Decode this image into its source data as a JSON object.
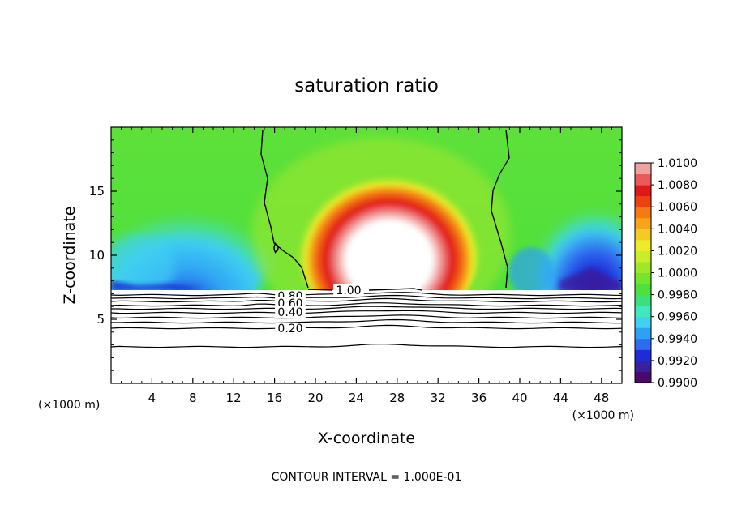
{
  "chart_data": {
    "type": "heatmap",
    "title": "saturation ratio",
    "xlabel": "X-coordinate",
    "ylabel": "Z-coordinate",
    "x_unit": "(×1000 m)",
    "y_unit": "(×1000 m)",
    "xlim": [
      0,
      50
    ],
    "ylim": [
      0,
      20
    ],
    "x_ticks": [
      4,
      8,
      12,
      16,
      20,
      24,
      28,
      32,
      36,
      40,
      44,
      48
    ],
    "y_ticks": [
      5,
      10,
      15
    ],
    "footer": "CONTOUR INTERVAL = 1.000E-01",
    "colorbar": {
      "min": 0.99,
      "max": 1.01,
      "labels": [
        "1.0100",
        "1.0080",
        "1.0060",
        "1.0040",
        "1.0020",
        "1.0000",
        "0.9980",
        "0.9960",
        "0.9940",
        "0.9920",
        "0.9900"
      ],
      "colors": [
        "#4b0a6b",
        "#3a1f9e",
        "#1f2bd6",
        "#2f6bf0",
        "#2fa0f5",
        "#3fd0f2",
        "#3fe8c0",
        "#3be07a",
        "#4ee03c",
        "#72e52c",
        "#9ee82a",
        "#c8ee2a",
        "#ecec2a",
        "#f2cc22",
        "#f5a515",
        "#f57a10",
        "#ec4410",
        "#e01818",
        "#ea5a5a",
        "#f2a0a0"
      ]
    },
    "contours": [
      {
        "label": "1.00"
      },
      {
        "label": "0.80"
      },
      {
        "label": "0.60"
      },
      {
        "label": "0.40"
      },
      {
        "label": "0.20"
      }
    ]
  }
}
